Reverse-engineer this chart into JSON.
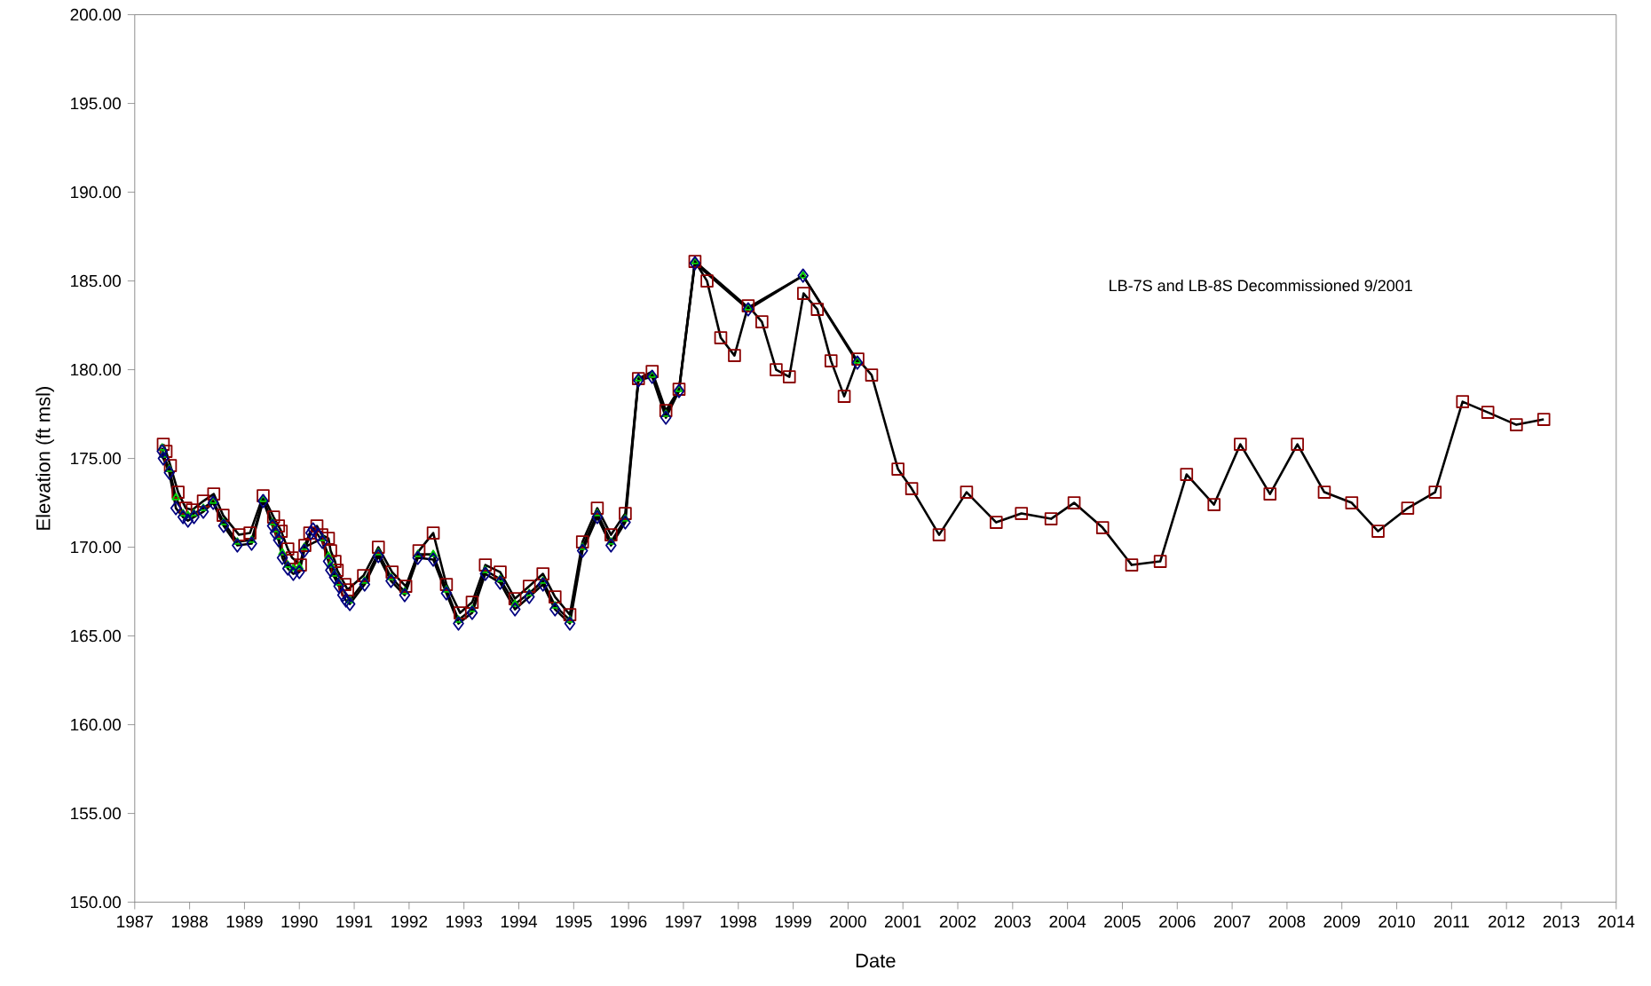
{
  "chart_data": {
    "type": "line",
    "xlabel": "Date",
    "ylabel": "Elevation (ft msl)",
    "annotations": [
      "LB-7S and LB-8S Decommissioned 9/2001"
    ],
    "xlim": [
      1987,
      2014
    ],
    "xticks": [
      1987,
      1988,
      1989,
      1990,
      1991,
      1992,
      1993,
      1994,
      1995,
      1996,
      1997,
      1998,
      1999,
      2000,
      2001,
      2002,
      2003,
      2004,
      2005,
      2006,
      2007,
      2008,
      2009,
      2010,
      2011,
      2012,
      2013,
      2014
    ],
    "ylim": [
      150,
      200
    ],
    "yticks": [
      {
        "value": 150,
        "label": "150.00"
      },
      {
        "value": 155,
        "label": "155.00"
      },
      {
        "value": 160,
        "label": "160.00"
      },
      {
        "value": 165,
        "label": "165.00"
      },
      {
        "value": 170,
        "label": "170.00"
      },
      {
        "value": 175,
        "label": "175.00"
      },
      {
        "value": 180,
        "label": "180.00"
      },
      {
        "value": 185,
        "label": "185.00"
      },
      {
        "value": 190,
        "label": "190.00"
      },
      {
        "value": 195,
        "label": "195.00"
      },
      {
        "value": 200,
        "label": "200.00"
      }
    ],
    "grid": false,
    "line_style": "solid",
    "series": [
      {
        "color": "#8b0000",
        "marker": "square",
        "x": [
          1987.52,
          1987.57,
          1987.65,
          1987.79,
          1987.93,
          1988.05,
          1988.25,
          1988.44,
          1988.61,
          1988.9,
          1989.1,
          1989.34,
          1989.53,
          1989.62,
          1989.67,
          1989.79,
          1989.87,
          1990.02,
          1990.1,
          1990.19,
          1990.32,
          1990.41,
          1990.53,
          1990.57,
          1990.65,
          1990.69,
          1990.83,
          1990.88,
          1991.17,
          1991.44,
          1991.69,
          1991.94,
          1992.18,
          1992.44,
          1992.68,
          1992.93,
          1993.15,
          1993.39,
          1993.66,
          1993.93,
          1994.19,
          1994.44,
          1994.66,
          1994.93,
          1995.16,
          1995.43,
          1995.68,
          1995.94,
          1996.18,
          1996.43,
          1996.68,
          1996.92,
          1997.21,
          1997.43,
          1997.68,
          1997.93,
          1998.18,
          1998.43,
          1998.69,
          1998.93,
          1999.19,
          1999.44,
          1999.69,
          1999.93,
          2000.18,
          2000.43,
          2000.91,
          2001.16,
          2001.66,
          2002.16,
          2002.7,
          2003.16,
          2003.7,
          2004.12,
          2004.64,
          2005.17,
          2005.69,
          2006.17,
          2006.67,
          2007.15,
          2007.69,
          2008.19,
          2008.68,
          2009.18,
          2009.66,
          2010.2,
          2010.7,
          2011.2,
          2011.66,
          2012.18,
          2012.68
        ],
        "values": [
          175.8,
          175.4,
          174.6,
          173.1,
          172.2,
          172.1,
          172.6,
          173.0,
          171.8,
          170.7,
          170.8,
          172.9,
          171.7,
          171.2,
          170.9,
          169.9,
          169.4,
          169.0,
          170.1,
          170.8,
          171.2,
          170.7,
          170.5,
          169.8,
          169.2,
          168.7,
          167.9,
          167.6,
          168.4,
          170.0,
          168.6,
          167.8,
          169.8,
          170.8,
          167.9,
          166.3,
          166.9,
          169.0,
          168.6,
          167.1,
          167.8,
          168.5,
          167.2,
          166.2,
          170.3,
          172.2,
          170.7,
          171.9,
          179.5,
          179.9,
          177.7,
          178.9,
          186.1,
          185.0,
          181.8,
          180.8,
          183.6,
          182.7,
          180.0,
          179.6,
          184.3,
          183.4,
          180.5,
          178.5,
          180.6,
          179.7,
          174.4,
          173.3,
          170.7,
          173.1,
          171.4,
          171.9,
          171.6,
          172.5,
          171.1,
          169.0,
          169.2,
          174.1,
          172.4,
          175.8,
          173.0,
          175.8,
          173.1,
          172.5,
          170.9,
          172.2,
          173.1,
          178.2,
          177.6,
          176.9,
          177.2
        ]
      },
      {
        "color": "#00cc00",
        "marker": "triangle",
        "x": [
          1987.5,
          1987.52,
          1987.63,
          1987.75,
          1987.88,
          1987.97,
          1988.08,
          1988.25,
          1988.43,
          1988.62,
          1988.87,
          1989.13,
          1989.34,
          1989.51,
          1989.56,
          1989.62,
          1989.69,
          1989.79,
          1989.89,
          1990.0,
          1990.09,
          1990.21,
          1990.25,
          1990.34,
          1990.42,
          1990.53,
          1990.57,
          1990.64,
          1990.72,
          1990.79,
          1990.85,
          1990.92,
          1991.19,
          1991.44,
          1991.67,
          1991.92,
          1992.16,
          1992.44,
          1992.68,
          1992.9,
          1993.15,
          1993.39,
          1993.66,
          1993.93,
          1994.19,
          1994.44,
          1994.66,
          1994.93,
          1995.16,
          1995.43,
          1995.68,
          1995.94,
          1996.18,
          1996.43,
          1996.68,
          1996.92,
          1997.21,
          1998.18,
          1999.18,
          2000.17
        ],
        "values": [
          175.6,
          175.2,
          174.4,
          172.8,
          171.9,
          171.8,
          171.9,
          172.2,
          172.6,
          171.4,
          170.3,
          170.4,
          172.7,
          171.4,
          171.0,
          170.6,
          169.7,
          169.0,
          168.8,
          168.9,
          170.0,
          null,
          null,
          null,
          170.5,
          169.5,
          169.0,
          168.5,
          168.0,
          null,
          null,
          167.0,
          168.1,
          169.7,
          168.3,
          167.5,
          169.6,
          169.6,
          167.6,
          165.9,
          166.5,
          168.7,
          168.2,
          166.8,
          167.4,
          168.1,
          166.7,
          165.9,
          170.0,
          171.9,
          170.3,
          171.6,
          179.5,
          179.7,
          177.5,
          178.9,
          186.1,
          183.5,
          185.3,
          180.5
        ]
      },
      {
        "color": "#000080",
        "marker": "diamond",
        "x": [
          1987.5,
          1987.52,
          1987.63,
          1987.75,
          1987.88,
          1987.97,
          1988.08,
          1988.25,
          1988.43,
          1988.62,
          1988.87,
          1989.13,
          1989.34,
          1989.51,
          1989.56,
          1989.62,
          1989.69,
          1989.79,
          1989.89,
          1990.0,
          1990.09,
          1990.21,
          1990.25,
          1990.34,
          1990.42,
          1990.53,
          1990.57,
          1990.64,
          1990.72,
          1990.79,
          1990.85,
          1990.92,
          1991.19,
          1991.44,
          1991.67,
          1991.92,
          1992.16,
          1992.44,
          1992.68,
          1992.9,
          1993.15,
          1993.39,
          1993.66,
          1993.93,
          1994.19,
          1994.44,
          1994.66,
          1994.93,
          1995.16,
          1995.43,
          1995.68,
          1995.94,
          1996.18,
          1996.43,
          1996.68,
          1996.92,
          1997.21,
          1998.18,
          1999.18,
          2000.17
        ],
        "values": [
          175.4,
          175.0,
          174.2,
          172.2,
          171.7,
          171.5,
          171.7,
          172.0,
          172.5,
          171.2,
          170.1,
          170.2,
          172.6,
          171.2,
          170.8,
          170.4,
          169.4,
          168.8,
          168.5,
          168.6,
          169.8,
          170.8,
          171.0,
          170.7,
          170.3,
          169.2,
          168.7,
          168.3,
          167.8,
          167.3,
          167.0,
          166.8,
          167.9,
          169.5,
          168.1,
          167.3,
          169.4,
          169.3,
          167.4,
          165.7,
          166.3,
          168.5,
          168.0,
          166.5,
          167.2,
          167.9,
          166.5,
          165.7,
          169.8,
          171.7,
          170.1,
          171.4,
          179.4,
          179.6,
          177.3,
          178.8,
          186.0,
          183.4,
          185.3,
          180.4
        ]
      }
    ]
  }
}
